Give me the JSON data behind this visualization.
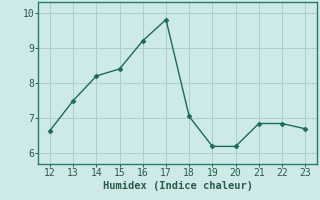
{
  "x": [
    12,
    13,
    14,
    15,
    16,
    17,
    18,
    19,
    20,
    21,
    22,
    23
  ],
  "y": [
    6.65,
    7.5,
    8.2,
    8.4,
    9.2,
    9.8,
    7.05,
    6.2,
    6.2,
    6.85,
    6.85,
    6.7
  ],
  "xlim": [
    11.5,
    23.5
  ],
  "ylim": [
    5.7,
    10.3
  ],
  "xticks": [
    12,
    13,
    14,
    15,
    16,
    17,
    18,
    19,
    20,
    21,
    22,
    23
  ],
  "yticks": [
    6,
    7,
    8,
    9,
    10
  ],
  "xlabel": "Humidex (Indice chaleur)",
  "line_color": "#1a6b5a",
  "marker": "D",
  "marker_size": 2.5,
  "bg_color": "#ceeae8",
  "grid_color": "#aacfcc",
  "spine_color": "#2a7a6a",
  "tick_color": "#2a5a4a",
  "label_fontsize": 7.5,
  "tick_fontsize": 7
}
